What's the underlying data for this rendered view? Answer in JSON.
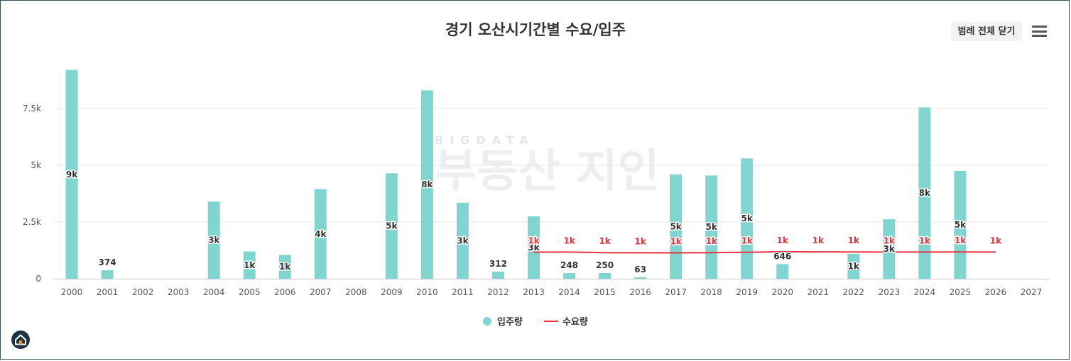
{
  "header": {
    "legend_toggle_label": "범례 전체 닫기"
  },
  "watermark": {
    "en": "BIGDATA",
    "ko": "부동산 지인"
  },
  "colors": {
    "supply": "#7fd6d0",
    "demand": "#e8353f",
    "grid": "#e6e6e6"
  },
  "chart_data": {
    "type": "bar",
    "title": "경기 오산시기간별 수요/입주",
    "categories": [
      "2000",
      "2001",
      "2002",
      "2003",
      "2004",
      "2005",
      "2006",
      "2007",
      "2008",
      "2009",
      "2010",
      "2011",
      "2012",
      "2013",
      "2014",
      "2015",
      "2016",
      "2017",
      "2018",
      "2019",
      "2020",
      "2021",
      "2022",
      "2023",
      "2024",
      "2025",
      "2026",
      "2027"
    ],
    "ylim": [
      0,
      9500
    ],
    "yticks": [
      0,
      2500,
      5000,
      7500
    ],
    "ytick_labels": [
      "0",
      "2.5k",
      "5k",
      "7.5k"
    ],
    "series": [
      {
        "name": "입주량",
        "type": "bar",
        "values": [
          9200,
          374,
          null,
          null,
          3400,
          1200,
          1050,
          3950,
          null,
          4650,
          8300,
          3350,
          312,
          2750,
          248,
          250,
          63,
          4600,
          4550,
          5300,
          646,
          null,
          1100,
          2620,
          7550,
          4750,
          null,
          null
        ],
        "labels": [
          "9k",
          "374",
          "",
          "",
          "3k",
          "1k",
          "1k",
          "4k",
          "",
          "5k",
          "8k",
          "3k",
          "312",
          "3k",
          "248",
          "250",
          "63",
          "5k",
          "5k",
          "5k",
          "646",
          "",
          "1k",
          "3k",
          "8k",
          "5k",
          "",
          ""
        ]
      },
      {
        "name": "수요량",
        "type": "line",
        "values": [
          null,
          null,
          null,
          null,
          null,
          null,
          null,
          null,
          null,
          null,
          null,
          null,
          null,
          1170,
          1175,
          1150,
          1145,
          1140,
          1150,
          1165,
          1190,
          1185,
          1180,
          1175,
          1175,
          1180,
          1175,
          null
        ],
        "labels": [
          "",
          "",
          "",
          "",
          "",
          "",
          "",
          "",
          "",
          "",
          "",
          "",
          "",
          "1k",
          "1k",
          "1k",
          "1k",
          "1k",
          "1k",
          "1k",
          "1k",
          "1k",
          "1k",
          "1k",
          "1k",
          "1k",
          "1k",
          ""
        ]
      }
    ]
  }
}
